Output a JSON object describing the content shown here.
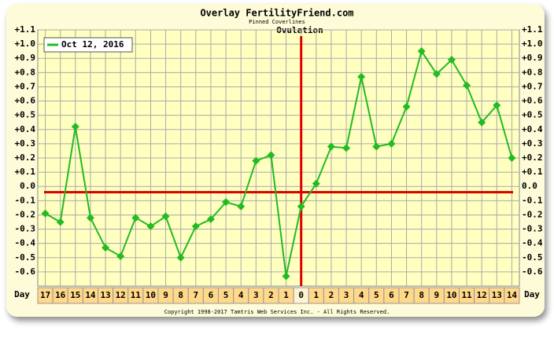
{
  "chart_data": {
    "type": "line",
    "title": "Overlay FertilityFriend.com",
    "subtitle": "Pinned Coverlines",
    "annotation": "Ovulation",
    "x_label": "Day",
    "footer": "Copyright 1998-2017 Tamtris Web Services Inc. - All Rights Reserved.",
    "categories": [
      "17",
      "16",
      "15",
      "14",
      "13",
      "12",
      "11",
      "10",
      "9",
      "8",
      "7",
      "6",
      "5",
      "4",
      "3",
      "2",
      "1",
      "0",
      "1",
      "2",
      "3",
      "4",
      "5",
      "6",
      "7",
      "8",
      "9",
      "10",
      "11",
      "12",
      "13",
      "14"
    ],
    "series": [
      {
        "name": "Oct 12, 2016",
        "color": "#22bb22",
        "values": [
          -0.19,
          -0.25,
          0.42,
          -0.22,
          -0.43,
          -0.49,
          -0.22,
          -0.28,
          -0.21,
          -0.5,
          -0.28,
          -0.23,
          -0.11,
          -0.14,
          0.18,
          0.22,
          -0.63,
          -0.14,
          0.02,
          0.28,
          0.27,
          0.77,
          0.28,
          0.3,
          0.56,
          0.95,
          0.79,
          0.89,
          0.71,
          0.45,
          0.57,
          0.2
        ]
      }
    ],
    "ylim": [
      -0.7,
      1.1
    ],
    "yticks": [
      {
        "value": 1.1,
        "label": "+1.1"
      },
      {
        "value": 1.0,
        "label": "+1.0"
      },
      {
        "value": 0.9,
        "label": "+0.9"
      },
      {
        "value": 0.8,
        "label": "+0.8"
      },
      {
        "value": 0.7,
        "label": "+0.7"
      },
      {
        "value": 0.6,
        "label": "+0.6"
      },
      {
        "value": 0.5,
        "label": "+0.5"
      },
      {
        "value": 0.4,
        "label": "+0.4"
      },
      {
        "value": 0.3,
        "label": "+0.3"
      },
      {
        "value": 0.2,
        "label": "+0.2"
      },
      {
        "value": 0.1,
        "label": "+0.1"
      },
      {
        "value": 0,
        "label": "0.0"
      },
      -0.1,
      -0.2,
      -0.3,
      -0.4,
      -0.5,
      -0.6
    ],
    "coverline": -0.04,
    "ovulation_category_index": 17,
    "reference_color": "#dd0000",
    "grid": true,
    "legend": "top-left"
  }
}
